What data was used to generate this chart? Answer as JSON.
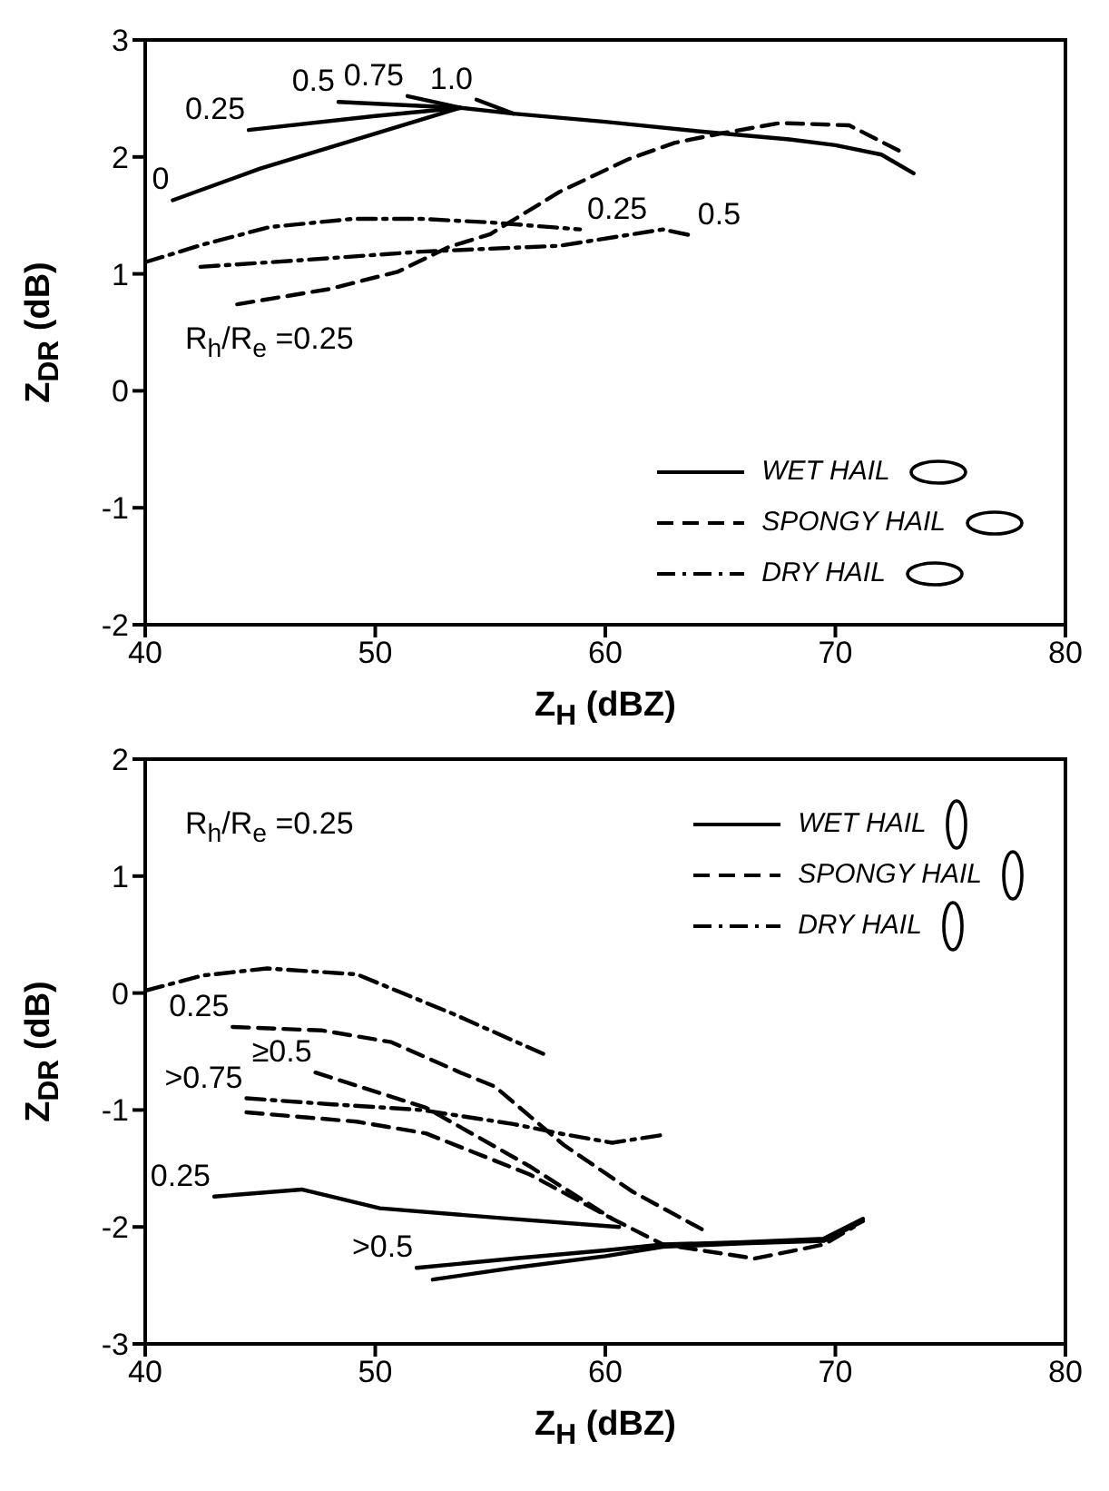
{
  "chart_data": [
    {
      "type": "line",
      "xlabel": "Z$_{H}$ (dBZ)",
      "ylabel": "Z$_{DR}$ (dB)",
      "xlim": [
        40,
        80
      ],
      "xticks": [
        40,
        50,
        60,
        70,
        80
      ],
      "ylim": [
        -2,
        3
      ],
      "yticks": [
        -2,
        -1,
        0,
        1,
        2,
        3
      ],
      "legend": "bottom right",
      "marker": "none",
      "series": [
        {
          "name": "WET HAIL",
          "color": "#000000",
          "line_style": "solid",
          "x": [
            41.2,
            45,
            50,
            53.7,
            56,
            60,
            64,
            68,
            70,
            72,
            73.4
          ],
          "values": [
            1.63,
            1.9,
            2.2,
            2.42,
            2.37,
            2.3,
            2.22,
            2.15,
            2.1,
            2.02,
            1.86
          ]
        },
        {
          "color": "#000000",
          "line_style": "solid",
          "x": [
            44.5,
            50,
            53.7
          ],
          "values": [
            2.23,
            2.35,
            2.42
          ]
        },
        {
          "color": "#000000",
          "line_style": "solid",
          "x": [
            48.4,
            53.7
          ],
          "values": [
            2.47,
            2.42
          ]
        },
        {
          "color": "#000000",
          "line_style": "solid",
          "x": [
            51.4,
            53.7
          ],
          "values": [
            2.52,
            2.42
          ]
        },
        {
          "color": "#000000",
          "line_style": "solid",
          "x": [
            54.4,
            56
          ],
          "values": [
            2.49,
            2.37
          ]
        },
        {
          "name": "SPONGY HAIL",
          "color": "#000000",
          "line_style": "dashed",
          "x": [
            44,
            48,
            51,
            53.2,
            55,
            58,
            61,
            63,
            65,
            67.6,
            70.6,
            73
          ],
          "values": [
            0.74,
            0.87,
            1.02,
            1.23,
            1.34,
            1.7,
            1.98,
            2.12,
            2.2,
            2.29,
            2.27,
            2.03
          ]
        },
        {
          "name": "DRY HAIL",
          "color": "#000000",
          "line_style": "dashdot",
          "x": [
            40,
            42.5,
            45.4,
            49,
            52,
            55,
            58.9
          ],
          "values": [
            1.1,
            1.25,
            1.4,
            1.47,
            1.47,
            1.44,
            1.38
          ]
        },
        {
          "color": "#000000",
          "line_style": "dashdot",
          "x": [
            42.4,
            47,
            52,
            58,
            62.5,
            63.7
          ],
          "values": [
            1.06,
            1.12,
            1.19,
            1.24,
            1.38,
            1.33
          ]
        }
      ],
      "annotations": [
        {
          "text": "0",
          "x": 41.2,
          "y": 1.63
        },
        {
          "text": "0.25",
          "x": 44.5,
          "y": 2.23
        },
        {
          "text": "0.5",
          "x": 48.4,
          "y": 2.47
        },
        {
          "text": "0.75",
          "x": 51.4,
          "y": 2.52
        },
        {
          "text": "1.0",
          "x": 54.4,
          "y": 2.49
        },
        {
          "text": "0.25",
          "x": 58.9,
          "y": 1.38
        },
        {
          "text": "0.5",
          "x": 63.7,
          "y": 1.33
        },
        "R$_{h}$/R$_{e}$ =0.25"
      ]
    },
    {
      "type": "line",
      "xlabel": "Z$_{H}$ (dBZ)",
      "ylabel": "Z$_{DR}$ (dB)",
      "xlim": [
        40,
        80
      ],
      "xticks": [
        40,
        50,
        60,
        70,
        80
      ],
      "ylim": [
        -3,
        2
      ],
      "yticks": [
        -3,
        -2,
        -1,
        0,
        1,
        2
      ],
      "legend": "top right",
      "marker": "none",
      "series": [
        {
          "name": "WET HAIL",
          "color": "#000000",
          "line_style": "solid",
          "x": [
            43,
            46.8,
            50.2,
            55.2,
            60.6
          ],
          "values": [
            -1.74,
            -1.68,
            -1.84,
            -1.92,
            -2.0
          ]
        },
        {
          "color": "#000000",
          "line_style": "solid",
          "x": [
            51.8,
            56,
            60,
            62.5,
            66,
            69.5,
            71.2
          ],
          "values": [
            -2.35,
            -2.27,
            -2.2,
            -2.15,
            -2.13,
            -2.1,
            -1.93
          ]
        },
        {
          "color": "#000000",
          "line_style": "solid",
          "x": [
            52.5,
            56,
            60,
            62.5,
            66,
            69.5,
            71.2
          ],
          "values": [
            -2.45,
            -2.35,
            -2.25,
            -2.17,
            -2.14,
            -2.12,
            -1.95
          ]
        },
        {
          "name": "SPONGY HAIL",
          "color": "#000000",
          "line_style": "dashed",
          "x": [
            43.8,
            47.7,
            50.7,
            53.7,
            55.2,
            58.2,
            61.2,
            64.2
          ],
          "values": [
            -0.29,
            -0.32,
            -0.42,
            -0.68,
            -0.8,
            -1.3,
            -1.7,
            -2.02
          ]
        },
        {
          "color": "#000000",
          "line_style": "dashed",
          "x": [
            47.4,
            52.2,
            56.7,
            60.3,
            62.5,
            66.5,
            69.5,
            70.8
          ],
          "values": [
            -0.68,
            -0.98,
            -1.48,
            -1.93,
            -2.15,
            -2.27,
            -2.15,
            -2.0
          ]
        },
        {
          "color": "#000000",
          "line_style": "dashed",
          "x": [
            44.4,
            49.2,
            52.2,
            56.7,
            60.3
          ],
          "values": [
            -1.02,
            -1.1,
            -1.2,
            -1.55,
            -1.93
          ]
        },
        {
          "name": "DRY HAIL",
          "color": "#000000",
          "line_style": "dashdot",
          "x": [
            40,
            42.5,
            45.3,
            49.2,
            53.4,
            57.3
          ],
          "values": [
            0.02,
            0.15,
            0.21,
            0.16,
            -0.18,
            -0.52
          ]
        },
        {
          "color": "#000000",
          "line_style": "dashdot",
          "x": [
            44.4,
            48,
            52,
            56,
            58,
            60.3,
            62.6
          ],
          "values": [
            -0.9,
            -0.95,
            -1.0,
            -1.12,
            -1.2,
            -1.28,
            -1.21
          ]
        }
      ],
      "annotations": [
        "R$_{h}$/R$_{e}$ =0.25",
        {
          "text": "0.25",
          "x": 43.8,
          "y": -0.29
        },
        {
          "text": "≥0.5",
          "x": 47.4,
          "y": -0.68
        },
        {
          "text": ">0.75",
          "x": 44.4,
          "y": -0.9
        },
        {
          "text": "0.25",
          "x": 43,
          "y": -1.74
        },
        {
          "text": ">0.5",
          "x": 51.8,
          "y": -2.35
        }
      ]
    }
  ]
}
